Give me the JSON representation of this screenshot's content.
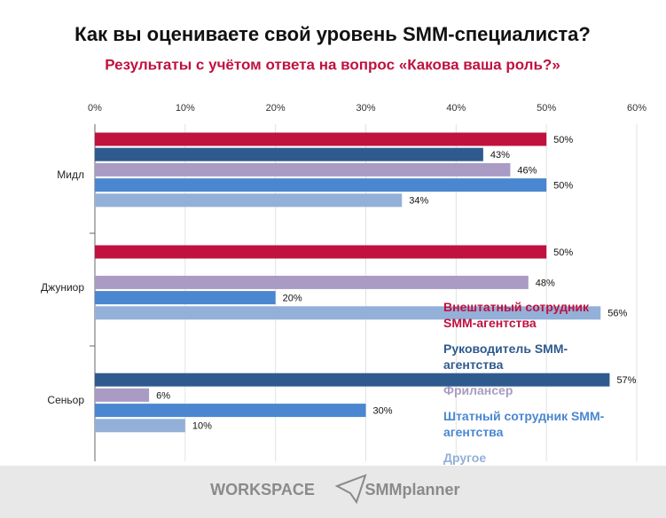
{
  "chart_data": {
    "type": "barh",
    "title": "Как вы оцениваете свой уровень SMM-специалиста?",
    "subtitle": "Результаты с учётом ответа на вопрос «Какова ваша роль?»",
    "categories": [
      "Мидл",
      "Джуниор",
      "Сеньор"
    ],
    "series": [
      {
        "name": "Внештатный сотрудник SMM-агентства",
        "color": "#c0113f",
        "values": [
          50,
          50,
          null
        ],
        "value_labels": [
          "50%",
          "50%",
          null
        ]
      },
      {
        "name": "Руководитель SMM-агентства",
        "color": "#2f5a8e",
        "values": [
          43,
          null,
          57
        ],
        "value_labels": [
          "43%",
          null,
          "57%"
        ]
      },
      {
        "name": "Фрилансер",
        "color": "#a99bc4",
        "values": [
          46,
          48,
          6
        ],
        "value_labels": [
          "46%",
          "48%",
          "6%"
        ]
      },
      {
        "name": "Штатный сотрудник SMM-агентства",
        "color": "#4a87d0",
        "values": [
          50,
          20,
          30
        ],
        "value_labels": [
          "50%",
          "20%",
          "30%"
        ]
      },
      {
        "name": "Другое",
        "color": "#93b0d8",
        "values": [
          34,
          56,
          10
        ],
        "value_labels": [
          "34%",
          "56%",
          "10%"
        ]
      }
    ],
    "xlim": [
      0,
      60
    ],
    "xticks": [
      {
        "value": 0,
        "label": "0%"
      },
      {
        "value": 10,
        "label": "10%"
      },
      {
        "value": 20,
        "label": "20%"
      },
      {
        "value": 30,
        "label": "30%"
      },
      {
        "value": 40,
        "label": "40%"
      },
      {
        "value": 50,
        "label": "50%"
      },
      {
        "value": 60,
        "label": "60%"
      }
    ],
    "grid": true,
    "legend": "right"
  },
  "footer": {
    "logos": [
      "WORKSPACE",
      "SMMplanner"
    ]
  }
}
